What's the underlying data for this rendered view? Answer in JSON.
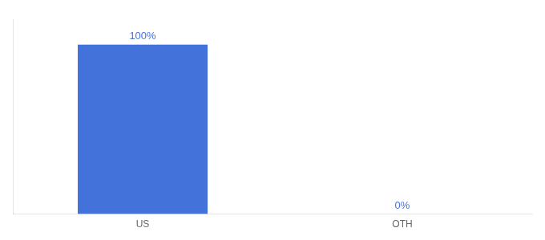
{
  "chart_data": {
    "type": "bar",
    "categories": [
      "US",
      "OTH"
    ],
    "values": [
      100,
      0
    ],
    "value_labels": [
      "100%",
      "0%"
    ],
    "color": "#4472db",
    "ylim": [
      0,
      115
    ],
    "data_labels": true,
    "tick_labels": "x",
    "grid": false
  }
}
